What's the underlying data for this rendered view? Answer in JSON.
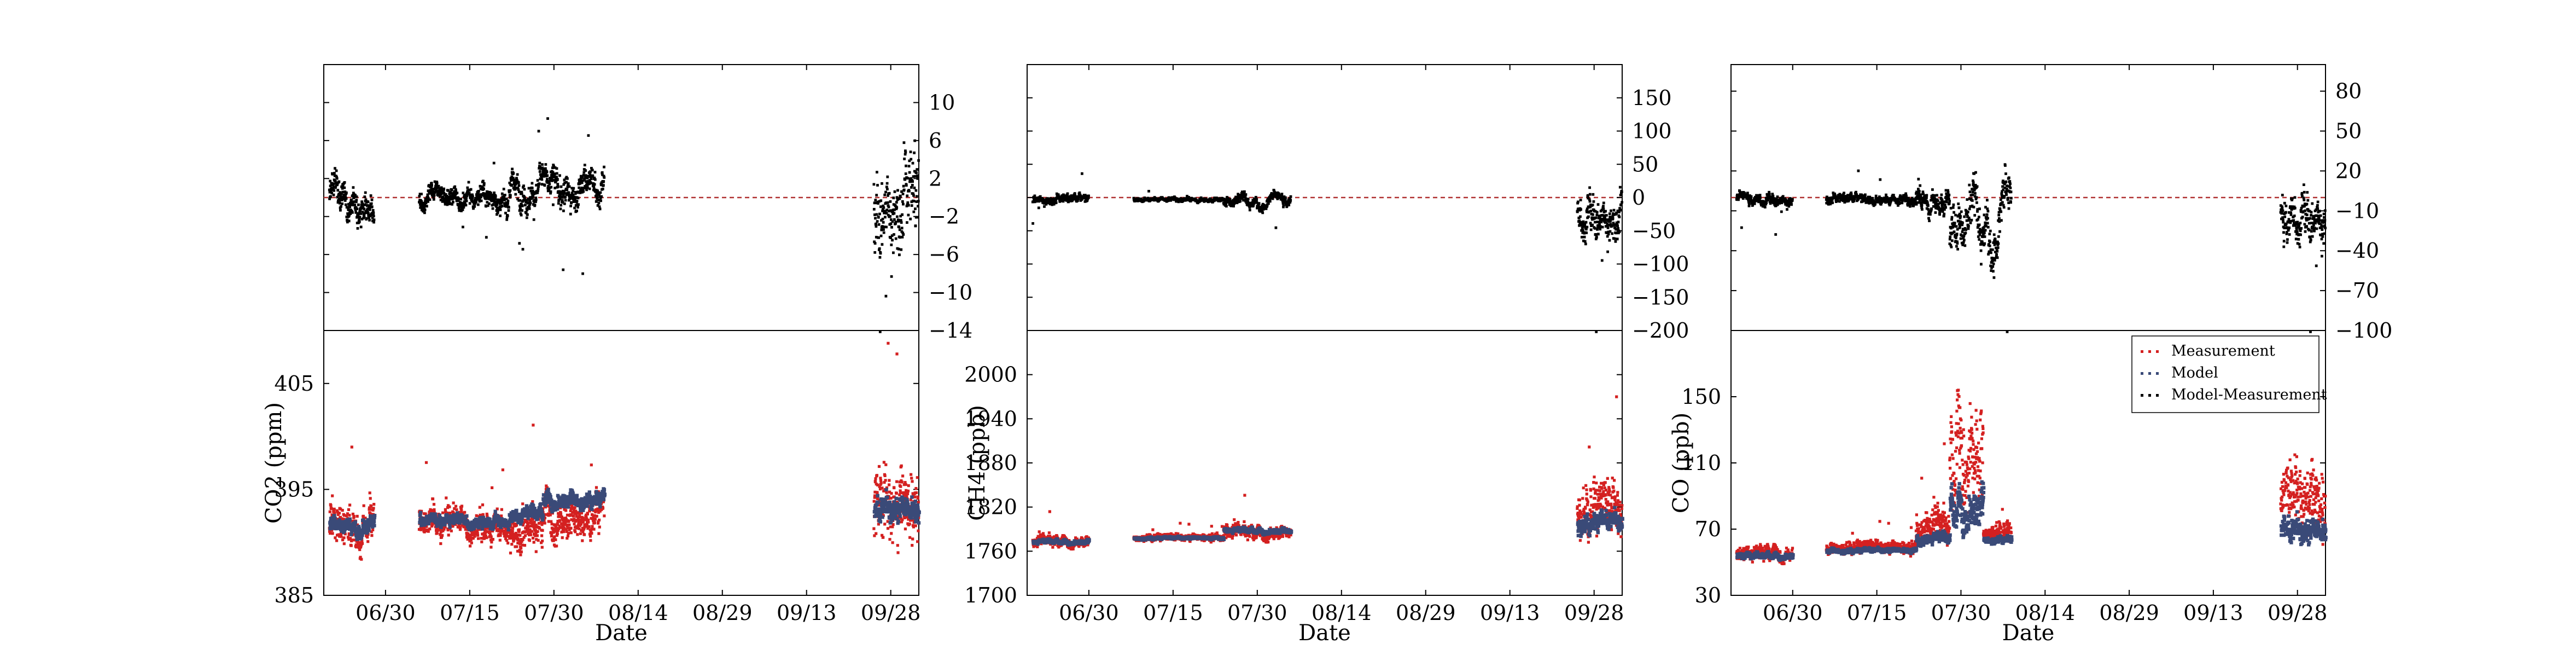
{
  "colors": {
    "measurement": "#d42020",
    "model": "#3a4a78",
    "model_minus_measurement": "#000000",
    "zero_line": "#b03030"
  },
  "legend": {
    "entries": [
      "Measurement",
      "Model",
      "Model-Measurement"
    ],
    "placement": "top-right of CO lower panel"
  },
  "chart_data": [
    {
      "type": "scatter",
      "panel": "CO2 difference",
      "x_axis": "date",
      "xlim": [
        "06-19",
        "10-03"
      ],
      "ylim": [
        -14,
        14
      ],
      "y_ticks": [
        -14,
        -10,
        -6,
        -2,
        2,
        6,
        10
      ],
      "y_axis_side": "right",
      "reference_line": 0,
      "segments": [
        {
          "start": "06-20",
          "end": "06-28",
          "center": 0.2,
          "amp": 2.5
        },
        {
          "start": "07-06",
          "end": "07-22",
          "center": -0.2,
          "amp": 1.5
        },
        {
          "start": "07-22",
          "end": "08-08",
          "center": 1.3,
          "amp": 2.4
        },
        {
          "start": "09-25",
          "end": "10-03",
          "center": 0.5,
          "amp": 6.5
        }
      ]
    },
    {
      "type": "scatter",
      "panel": "CO2",
      "x_axis": "date",
      "xlim": [
        "06-19",
        "10-03"
      ],
      "ylim": [
        385,
        410
      ],
      "y_ticks": [
        385,
        395,
        405
      ],
      "x_ticks": [
        "06/30",
        "07/15",
        "07/30",
        "08/14",
        "08/29",
        "09/13",
        "09/28"
      ],
      "ylabel": "CO2 (ppm)",
      "xlabel": "Date",
      "segments": [
        {
          "start": "06-20",
          "end": "06-28",
          "model": 392.0,
          "meas": 392.2,
          "amp": 2.2
        },
        {
          "start": "07-06",
          "end": "07-22",
          "model": 392.2,
          "meas": 392.0,
          "amp": 1.6
        },
        {
          "start": "07-22",
          "end": "07-28",
          "model": 392.8,
          "meas": 391.6,
          "amp": 2.0
        },
        {
          "start": "07-28",
          "end": "08-08",
          "model": 394.2,
          "meas": 393.0,
          "amp": 2.2
        },
        {
          "start": "09-25",
          "end": "10-03",
          "model": 393.0,
          "meas": 393.0,
          "amp": 4.0
        }
      ]
    },
    {
      "type": "scatter",
      "panel": "CH4 difference",
      "x_axis": "date",
      "xlim": [
        "06-19",
        "10-03"
      ],
      "ylim": [
        -200,
        200
      ],
      "y_ticks": [
        -200,
        -150,
        -100,
        -50,
        0,
        50,
        100,
        150
      ],
      "y_axis_side": "right",
      "reference_line": 0,
      "segments": [
        {
          "start": "06-20",
          "end": "06-30",
          "center": 0,
          "amp": 9
        },
        {
          "start": "07-08",
          "end": "07-24",
          "center": 0,
          "amp": 4
        },
        {
          "start": "07-24",
          "end": "08-05",
          "center": -2,
          "amp": 12
        },
        {
          "start": "09-25",
          "end": "10-03",
          "center": -20,
          "amp": 45
        }
      ]
    },
    {
      "type": "scatter",
      "panel": "CH4",
      "x_axis": "date",
      "xlim": [
        "06-19",
        "10-03"
      ],
      "ylim": [
        1700,
        2060
      ],
      "y_ticks": [
        1700,
        1760,
        1820,
        1880,
        1940,
        2000
      ],
      "x_ticks": [
        "06/30",
        "07/15",
        "07/30",
        "08/14",
        "08/29",
        "09/13",
        "09/28"
      ],
      "ylabel": "CH4 (ppb)",
      "xlabel": "Date",
      "segments": [
        {
          "start": "06-20",
          "end": "06-30",
          "model": 1775,
          "meas": 1775,
          "amp": 8
        },
        {
          "start": "07-08",
          "end": "07-24",
          "model": 1780,
          "meas": 1780,
          "amp": 5
        },
        {
          "start": "07-24",
          "end": "08-05",
          "model": 1790,
          "meas": 1788,
          "amp": 10
        },
        {
          "start": "09-25",
          "end": "10-03",
          "model": 1800,
          "meas": 1810,
          "amp": 40
        }
      ]
    },
    {
      "type": "scatter",
      "panel": "CO difference",
      "x_axis": "date",
      "xlim": [
        "06-19",
        "10-03"
      ],
      "ylim": [
        -100,
        100
      ],
      "y_ticks": [
        -100,
        -70,
        -40,
        -10,
        20,
        50,
        80
      ],
      "y_axis_side": "right",
      "reference_line": 0,
      "segments": [
        {
          "start": "06-20",
          "end": "06-30",
          "center": 0,
          "amp": 6
        },
        {
          "start": "07-06",
          "end": "07-22",
          "center": 0,
          "amp": 5
        },
        {
          "start": "07-22",
          "end": "07-28",
          "center": 2,
          "amp": 12
        },
        {
          "start": "07-28",
          "end": "08-08",
          "center": -12,
          "amp": 30
        },
        {
          "start": "09-25",
          "end": "10-03",
          "center": -10,
          "amp": 25
        }
      ]
    },
    {
      "type": "scatter",
      "panel": "CO",
      "x_axis": "date",
      "xlim": [
        "06-19",
        "10-03"
      ],
      "ylim": [
        30,
        190
      ],
      "y_ticks": [
        30,
        70,
        110,
        150
      ],
      "x_ticks": [
        "06/30",
        "07/15",
        "07/30",
        "08/14",
        "08/29",
        "09/13",
        "09/28"
      ],
      "ylabel": "CO (ppb)",
      "xlabel": "Date",
      "segments": [
        {
          "start": "06-20",
          "end": "06-30",
          "model": 55,
          "meas": 56,
          "amp": 5
        },
        {
          "start": "07-06",
          "end": "07-22",
          "model": 58,
          "meas": 59,
          "amp": 4
        },
        {
          "start": "07-22",
          "end": "07-28",
          "model": 65,
          "meas": 70,
          "amp": 10
        },
        {
          "start": "07-28",
          "end": "08-03",
          "model": 85,
          "meas": 110,
          "amp": 35
        },
        {
          "start": "08-03",
          "end": "08-08",
          "model": 65,
          "meas": 68,
          "amp": 6
        },
        {
          "start": "09-25",
          "end": "10-03",
          "model": 68,
          "meas": 80,
          "amp": 25
        }
      ]
    }
  ]
}
